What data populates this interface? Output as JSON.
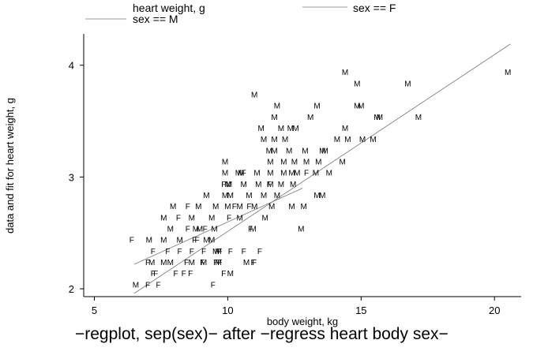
{
  "caption": "−regplot, sep(sex)− after −regress heart body sex−",
  "chart_data": {
    "type": "scatter",
    "title": "",
    "xlabel": "body weight, kg",
    "ylabel": "data and fit for heart weight, g",
    "xlim": [
      4.6,
      21.0
    ],
    "ylim": [
      1.93,
      4.28
    ],
    "xticks": [
      "5",
      "10",
      "15",
      "20"
    ],
    "yticks": [
      "2",
      "3",
      "4"
    ],
    "grid": false,
    "legend_position": "top",
    "legend": [
      "heart weight, g",
      "sex == F",
      "sex == M"
    ],
    "marker_colors": {
      "points": "#000000",
      "lines": "#777777"
    },
    "fit_lines": [
      {
        "name": "sex == F",
        "x": [
          6.5,
          12.8
        ],
        "y": [
          2.22,
          2.9
        ]
      },
      {
        "name": "sex == M",
        "x": [
          6.5,
          20.6
        ],
        "y": [
          1.96,
          4.19
        ]
      }
    ],
    "series": [
      {
        "name": "heart weight, g",
        "points": [
          {
            "x": 6.4,
            "y": 2.44,
            "label": "F"
          },
          {
            "x": 7.05,
            "y": 2.44,
            "label": "M"
          },
          {
            "x": 7.6,
            "y": 2.44,
            "label": "M"
          },
          {
            "x": 8.2,
            "y": 2.44,
            "label": "M"
          },
          {
            "x": 8.75,
            "y": 2.44,
            "label": "F"
          },
          {
            "x": 8.85,
            "y": 2.44,
            "label": "F"
          },
          {
            "x": 9.2,
            "y": 2.44,
            "label": "M"
          },
          {
            "x": 9.4,
            "y": 2.44,
            "label": "M"
          },
          {
            "x": 7.2,
            "y": 2.34,
            "label": "F"
          },
          {
            "x": 7.75,
            "y": 2.34,
            "label": "F"
          },
          {
            "x": 8.2,
            "y": 2.34,
            "label": "F"
          },
          {
            "x": 8.65,
            "y": 2.34,
            "label": "F"
          },
          {
            "x": 9.1,
            "y": 2.34,
            "label": "F"
          },
          {
            "x": 9.55,
            "y": 2.34,
            "label": "M"
          },
          {
            "x": 9.65,
            "y": 2.34,
            "label": "M"
          },
          {
            "x": 9.7,
            "y": 2.34,
            "label": "F"
          },
          {
            "x": 10.1,
            "y": 2.34,
            "label": "F"
          },
          {
            "x": 10.6,
            "y": 2.34,
            "label": "F"
          },
          {
            "x": 11.2,
            "y": 2.34,
            "label": "F"
          },
          {
            "x": 7.0,
            "y": 2.24,
            "label": "F"
          },
          {
            "x": 7.15,
            "y": 2.24,
            "label": "M"
          },
          {
            "x": 7.6,
            "y": 2.24,
            "label": "M"
          },
          {
            "x": 7.85,
            "y": 2.24,
            "label": "M"
          },
          {
            "x": 8.45,
            "y": 2.24,
            "label": "F"
          },
          {
            "x": 8.65,
            "y": 2.24,
            "label": "M"
          },
          {
            "x": 9.05,
            "y": 2.24,
            "label": "F"
          },
          {
            "x": 9.1,
            "y": 2.24,
            "label": "M"
          },
          {
            "x": 9.55,
            "y": 2.24,
            "label": "F"
          },
          {
            "x": 9.65,
            "y": 2.24,
            "label": "M"
          },
          {
            "x": 9.7,
            "y": 2.24,
            "label": "F"
          },
          {
            "x": 10.7,
            "y": 2.24,
            "label": "M"
          },
          {
            "x": 10.95,
            "y": 2.24,
            "label": "F"
          },
          {
            "x": 11.0,
            "y": 2.24,
            "label": "F"
          },
          {
            "x": 7.2,
            "y": 2.14,
            "label": "F"
          },
          {
            "x": 7.3,
            "y": 2.14,
            "label": "F"
          },
          {
            "x": 8.05,
            "y": 2.14,
            "label": "F"
          },
          {
            "x": 8.35,
            "y": 2.14,
            "label": "F"
          },
          {
            "x": 8.6,
            "y": 2.14,
            "label": "F"
          },
          {
            "x": 9.85,
            "y": 2.14,
            "label": "F"
          },
          {
            "x": 10.1,
            "y": 2.14,
            "label": "M"
          },
          {
            "x": 6.55,
            "y": 2.04,
            "label": "M"
          },
          {
            "x": 7.0,
            "y": 2.04,
            "label": "F"
          },
          {
            "x": 7.4,
            "y": 2.04,
            "label": "F"
          },
          {
            "x": 9.45,
            "y": 2.04,
            "label": "F"
          },
          {
            "x": 9.9,
            "y": 3.14,
            "label": "M"
          },
          {
            "x": 11.0,
            "y": 3.74,
            "label": "M"
          },
          {
            "x": 11.25,
            "y": 3.44,
            "label": "M"
          },
          {
            "x": 11.75,
            "y": 3.54,
            "label": "M"
          },
          {
            "x": 11.85,
            "y": 3.64,
            "label": "M"
          },
          {
            "x": 12.0,
            "y": 3.44,
            "label": "M"
          },
          {
            "x": 12.35,
            "y": 3.44,
            "label": "M"
          },
          {
            "x": 12.55,
            "y": 3.44,
            "label": "M"
          },
          {
            "x": 11.35,
            "y": 3.34,
            "label": "M"
          },
          {
            "x": 11.75,
            "y": 3.34,
            "label": "M"
          },
          {
            "x": 12.15,
            "y": 3.34,
            "label": "M"
          },
          {
            "x": 11.55,
            "y": 3.24,
            "label": "M"
          },
          {
            "x": 11.75,
            "y": 3.24,
            "label": "M"
          },
          {
            "x": 12.3,
            "y": 3.24,
            "label": "M"
          },
          {
            "x": 12.9,
            "y": 3.24,
            "label": "M"
          },
          {
            "x": 13.1,
            "y": 3.54,
            "label": "M"
          },
          {
            "x": 13.35,
            "y": 3.64,
            "label": "M"
          },
          {
            "x": 13.55,
            "y": 3.24,
            "label": "M"
          },
          {
            "x": 13.65,
            "y": 3.24,
            "label": "M"
          },
          {
            "x": 14.1,
            "y": 3.34,
            "label": "M"
          },
          {
            "x": 14.4,
            "y": 3.44,
            "label": "M"
          },
          {
            "x": 14.4,
            "y": 3.94,
            "label": "M"
          },
          {
            "x": 14.85,
            "y": 3.84,
            "label": "M"
          },
          {
            "x": 14.85,
            "y": 3.64,
            "label": "M"
          },
          {
            "x": 15.0,
            "y": 3.64,
            "label": "M"
          },
          {
            "x": 15.6,
            "y": 3.54,
            "label": "M"
          },
          {
            "x": 15.7,
            "y": 3.54,
            "label": "M"
          },
          {
            "x": 16.75,
            "y": 3.84,
            "label": "M"
          },
          {
            "x": 17.15,
            "y": 3.54,
            "label": "M"
          },
          {
            "x": 20.5,
            "y": 3.94,
            "label": "M"
          },
          {
            "x": 14.5,
            "y": 3.34,
            "label": "M"
          },
          {
            "x": 15.05,
            "y": 3.34,
            "label": "M"
          },
          {
            "x": 15.45,
            "y": 3.34,
            "label": "M"
          },
          {
            "x": 14.3,
            "y": 3.14,
            "label": "M"
          },
          {
            "x": 11.6,
            "y": 3.14,
            "label": "M"
          },
          {
            "x": 12.1,
            "y": 3.14,
            "label": "M"
          },
          {
            "x": 12.5,
            "y": 3.14,
            "label": "M"
          },
          {
            "x": 12.95,
            "y": 3.14,
            "label": "M"
          },
          {
            "x": 13.4,
            "y": 3.14,
            "label": "M"
          },
          {
            "x": 9.9,
            "y": 3.04,
            "label": "M"
          },
          {
            "x": 10.4,
            "y": 3.04,
            "label": "M"
          },
          {
            "x": 10.5,
            "y": 3.04,
            "label": "M"
          },
          {
            "x": 10.6,
            "y": 3.04,
            "label": "F"
          },
          {
            "x": 11.1,
            "y": 3.04,
            "label": "M"
          },
          {
            "x": 11.6,
            "y": 3.04,
            "label": "M"
          },
          {
            "x": 12.1,
            "y": 3.04,
            "label": "M"
          },
          {
            "x": 12.4,
            "y": 3.04,
            "label": "M"
          },
          {
            "x": 12.6,
            "y": 3.04,
            "label": "M"
          },
          {
            "x": 12.95,
            "y": 3.04,
            "label": "F"
          },
          {
            "x": 13.3,
            "y": 3.04,
            "label": "M"
          },
          {
            "x": 13.8,
            "y": 3.04,
            "label": "M"
          },
          {
            "x": 9.85,
            "y": 2.94,
            "label": "F"
          },
          {
            "x": 10.0,
            "y": 2.94,
            "label": "M"
          },
          {
            "x": 10.05,
            "y": 2.94,
            "label": "M"
          },
          {
            "x": 10.6,
            "y": 2.94,
            "label": "M"
          },
          {
            "x": 11.15,
            "y": 2.94,
            "label": "M"
          },
          {
            "x": 11.55,
            "y": 2.94,
            "label": "F"
          },
          {
            "x": 11.6,
            "y": 2.94,
            "label": "M"
          },
          {
            "x": 12.0,
            "y": 2.94,
            "label": "M"
          },
          {
            "x": 12.45,
            "y": 2.94,
            "label": "M"
          },
          {
            "x": 9.2,
            "y": 2.84,
            "label": "M"
          },
          {
            "x": 9.9,
            "y": 2.84,
            "label": "M"
          },
          {
            "x": 10.1,
            "y": 2.84,
            "label": "M"
          },
          {
            "x": 10.8,
            "y": 2.84,
            "label": "M"
          },
          {
            "x": 11.35,
            "y": 2.84,
            "label": "M"
          },
          {
            "x": 11.85,
            "y": 2.84,
            "label": "M"
          },
          {
            "x": 13.35,
            "y": 2.84,
            "label": "M"
          },
          {
            "x": 13.55,
            "y": 2.84,
            "label": "M"
          },
          {
            "x": 7.95,
            "y": 2.74,
            "label": "M"
          },
          {
            "x": 8.5,
            "y": 2.74,
            "label": "F"
          },
          {
            "x": 8.9,
            "y": 2.74,
            "label": "M"
          },
          {
            "x": 9.55,
            "y": 2.74,
            "label": "M"
          },
          {
            "x": 10.0,
            "y": 2.74,
            "label": "M"
          },
          {
            "x": 10.25,
            "y": 2.74,
            "label": "F"
          },
          {
            "x": 10.45,
            "y": 2.74,
            "label": "M"
          },
          {
            "x": 10.8,
            "y": 2.74,
            "label": "F"
          },
          {
            "x": 11.0,
            "y": 2.74,
            "label": "M"
          },
          {
            "x": 11.65,
            "y": 2.74,
            "label": "M"
          },
          {
            "x": 12.4,
            "y": 2.74,
            "label": "M"
          },
          {
            "x": 12.85,
            "y": 2.74,
            "label": "M"
          },
          {
            "x": 7.6,
            "y": 2.64,
            "label": "M"
          },
          {
            "x": 8.15,
            "y": 2.64,
            "label": "F"
          },
          {
            "x": 8.65,
            "y": 2.64,
            "label": "M"
          },
          {
            "x": 9.4,
            "y": 2.64,
            "label": "M"
          },
          {
            "x": 10.05,
            "y": 2.64,
            "label": "F"
          },
          {
            "x": 10.45,
            "y": 2.64,
            "label": "M"
          },
          {
            "x": 11.4,
            "y": 2.64,
            "label": "M"
          },
          {
            "x": 7.85,
            "y": 2.54,
            "label": "M"
          },
          {
            "x": 8.5,
            "y": 2.54,
            "label": "F"
          },
          {
            "x": 8.8,
            "y": 2.54,
            "label": "M"
          },
          {
            "x": 8.95,
            "y": 2.54,
            "label": "M"
          },
          {
            "x": 9.15,
            "y": 2.54,
            "label": "F"
          },
          {
            "x": 9.5,
            "y": 2.54,
            "label": "M"
          },
          {
            "x": 10.85,
            "y": 2.54,
            "label": "F"
          },
          {
            "x": 10.95,
            "y": 2.54,
            "label": "M"
          },
          {
            "x": 12.75,
            "y": 2.54,
            "label": "M"
          }
        ]
      }
    ]
  }
}
